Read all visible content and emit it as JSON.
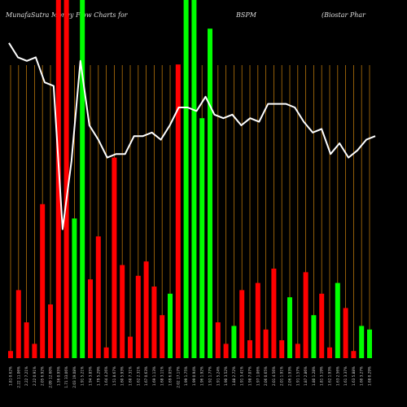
{
  "header": {
    "left": "MunafaSutra  Money Flow  Charts for",
    "symbol": "BSPM",
    "company": "(Biostar Phar"
  },
  "colors": {
    "background": "#000000",
    "gridline": "#b5730a",
    "up": "#00ff00",
    "down": "#ff0000",
    "line": "#ffffff"
  },
  "chart_data": {
    "type": "bar",
    "title": "",
    "xlabel": "",
    "ylabel": "",
    "ylim": [
      0,
      100
    ],
    "categories": [
      "1.81 0.62%",
      "2.22 11.06%",
      "2.22 7.21%",
      "2.22 0.91%",
      "2.05 6.92%",
      "2.09 12.60%",
      "1.56 0.95%",
      "1.71 33.06%",
      "2.03 19.08%",
      "1.91 5.21%",
      "1.94 3.85%",
      "1.79 5.29%",
      "1.64 4.26%",
      "1.51 8.67%",
      "1.60 5.93%",
      "1.60 7.31%",
      "1.62 2.31%",
      "1.67 0.63%",
      "1.69 1.13%",
      "1.68 3.11%",
      "1.69 6.05%",
      "2.02 17.17%",
      "1.99 1.75%",
      "1.99 0.94%",
      "1.96 1.92%",
      "1.92 1.77%",
      "1.91 5.24%",
      "1.90 3.52%",
      "1.88 2.72%",
      "1.91 3.41%",
      "1.98 7.07%",
      "1.97 1.06%",
      "2.06 0.65%",
      "2.01 4.56%",
      "2.01 1.91%",
      "2.06 1.93%",
      "1.91 1.57%",
      "1.87 2.86%",
      "1.80 1.28%",
      "1.81 3.19%",
      "1.62 1.93%",
      "1.63 2.56%",
      "1.61 3.37%",
      "1.63 5.88%",
      "1.60 3.27%",
      "1.68 0.29%"
    ],
    "series": [
      {
        "name": "",
        "values": [
          2,
          19,
          10,
          4,
          43,
          15,
          100,
          100,
          39,
          100,
          22,
          34,
          3,
          56,
          26,
          6,
          23,
          27,
          20,
          12,
          18,
          82,
          100,
          100,
          67,
          92,
          10,
          4,
          9,
          19,
          5,
          21,
          8,
          25,
          5,
          17,
          4,
          24,
          12,
          18,
          3,
          21,
          14,
          2,
          9,
          8
        ]
      }
    ],
    "bar_directions": [
      "down",
      "down",
      "down",
      "down",
      "down",
      "down",
      "down",
      "down",
      "up",
      "up",
      "down",
      "down",
      "down",
      "down",
      "down",
      "down",
      "down",
      "down",
      "down",
      "down",
      "up",
      "down",
      "up",
      "up",
      "up",
      "up",
      "down",
      "down",
      "up",
      "down",
      "down",
      "down",
      "down",
      "down",
      "down",
      "up",
      "down",
      "down",
      "up",
      "down",
      "down",
      "up",
      "down",
      "down",
      "up",
      "up"
    ],
    "line_series": {
      "name": "",
      "values": [
        88,
        84,
        83,
        84,
        77,
        76,
        36,
        55,
        83,
        65,
        61,
        56,
        57,
        57,
        62,
        62,
        63,
        61,
        65,
        70,
        70,
        69,
        73,
        68,
        67,
        68,
        65,
        67,
        66,
        71,
        71,
        71,
        70,
        66,
        63,
        64,
        57,
        60,
        56,
        58,
        61,
        62
      ]
    },
    "grid": true
  }
}
